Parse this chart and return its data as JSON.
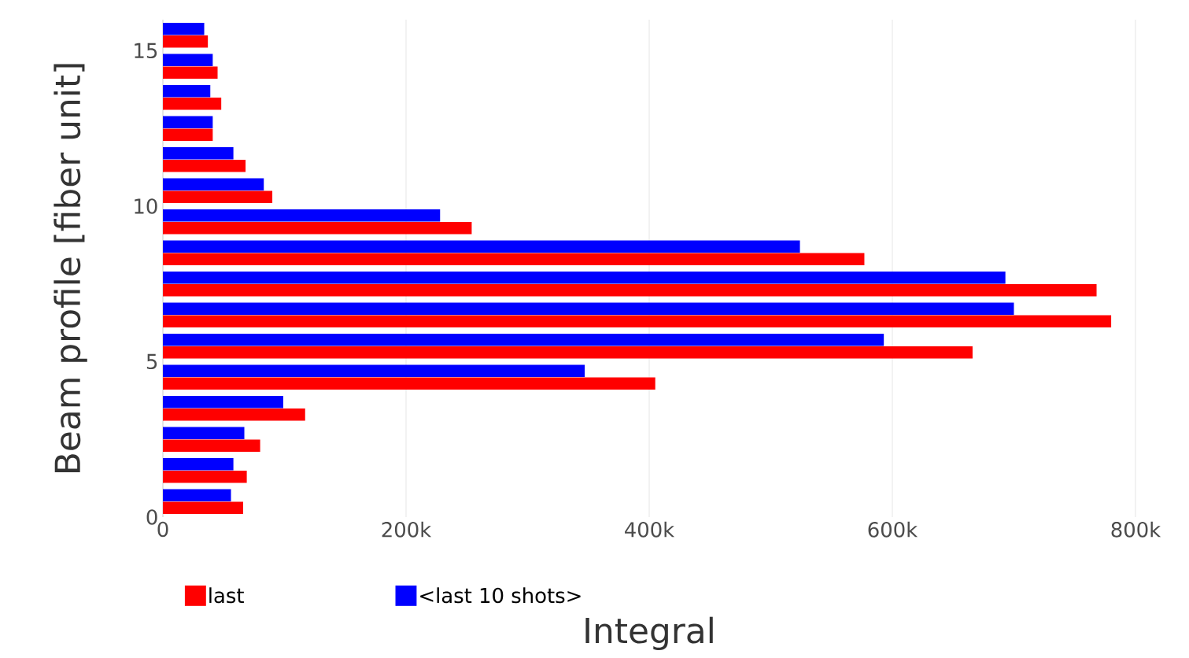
{
  "chart_data": {
    "type": "bar",
    "orientation": "horizontal",
    "xlabel": "Integral",
    "ylabel": "Beam profile [fiber unit]",
    "x": [
      0.5,
      1.5,
      2.5,
      3.5,
      4.5,
      5.5,
      6.5,
      7.5,
      8.5,
      9.5,
      10.5,
      11.5,
      12.5,
      13.5,
      14.5,
      15.5
    ],
    "series": [
      {
        "name": "last",
        "color": "#ff0000",
        "values": [
          66000,
          69000,
          80000,
          117000,
          405000,
          666000,
          780000,
          768000,
          577000,
          254000,
          90000,
          68000,
          41000,
          48000,
          45000,
          37000
        ]
      },
      {
        "name": "<last 10 shots>",
        "color": "#0000ff",
        "values": [
          56000,
          58000,
          67000,
          99000,
          347000,
          593000,
          700000,
          693000,
          524000,
          228000,
          83000,
          58000,
          41000,
          39000,
          41000,
          34000
        ]
      }
    ],
    "xlim": [
      0,
      800000
    ],
    "xticks": [
      0,
      {
        "value": 200000,
        "label": "200k"
      },
      {
        "value": 400000,
        "label": "400k"
      },
      {
        "value": 600000,
        "label": "600k"
      },
      {
        "value": 800000,
        "label": "800k"
      }
    ],
    "ylim": [
      0,
      16
    ],
    "yticks": [
      0,
      5,
      10,
      15
    ],
    "grid": "x",
    "legend": "bottom"
  }
}
